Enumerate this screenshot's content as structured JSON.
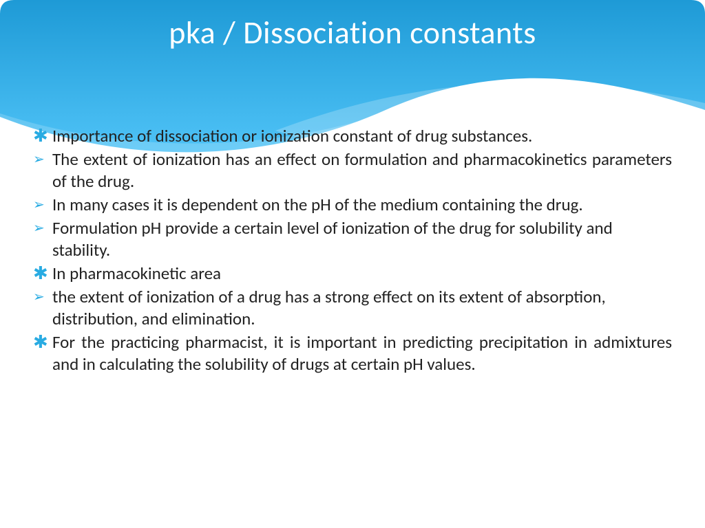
{
  "slide": {
    "title": "pka / Dissociation constants",
    "title_color": "#ffffff",
    "title_fontsize": 46,
    "body_color": "#222222",
    "body_fontsize": 25,
    "accent_color": "#29abe2",
    "background_color": "#ffffff",
    "header_gradient": {
      "top": "#1e9ad6",
      "bottom": "#4fc3f7"
    },
    "wave_overlay_color": "#ffffff",
    "bullets": [
      {
        "marker": "asterisk",
        "justify": true,
        "text": "Importance of dissociation or ionization constant of drug substances."
      },
      {
        "marker": "arrow",
        "justify": true,
        "text": "The extent of ionization has an effect on formulation and pharmacokinetics parameters of the drug."
      },
      {
        "marker": "arrow",
        "justify": false,
        "text": "In many cases it is dependent on the pH of the medium containing the drug."
      },
      {
        "marker": "arrow",
        "justify": false,
        "text": "Formulation pH provide a certain level of ionization of the drug for solubility and stability."
      },
      {
        "marker": "asterisk",
        "justify": false,
        "text": "In pharmacokinetic area"
      },
      {
        "marker": "arrow",
        "justify": false,
        "text": " the extent of ionization of a drug has a strong effect on its extent of absorption, distribution, and elimination."
      },
      {
        "marker": "asterisk",
        "justify": true,
        "text": "For the practicing pharmacist, it is important in predicting precipitation in admixtures and in calculating the solubility of drugs at certain pH values."
      }
    ],
    "markers": {
      "asterisk": "✱",
      "arrow": "➢"
    }
  }
}
